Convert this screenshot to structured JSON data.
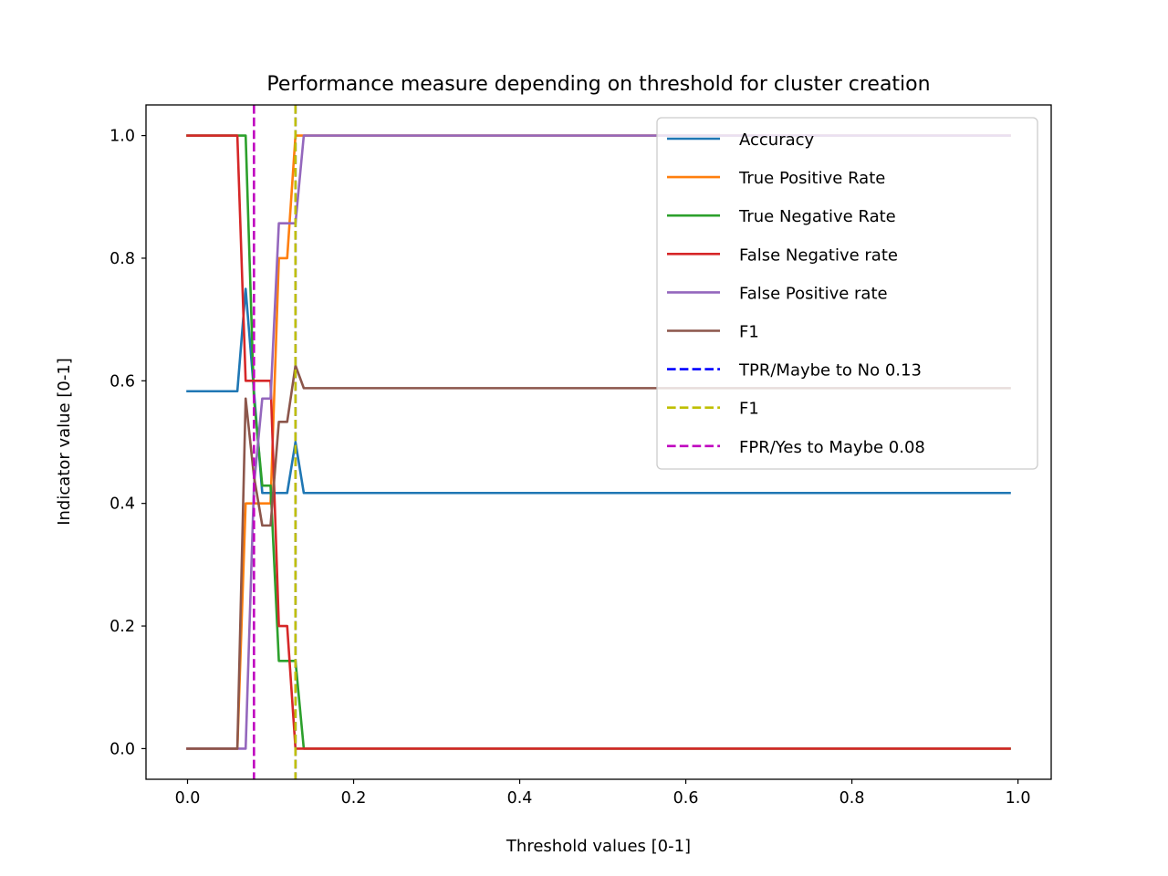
{
  "chart_data": {
    "type": "line",
    "title": "Performance measure depending on threshold for cluster creation",
    "xlabel": "Threshold values [0-1]",
    "ylabel": "Indicator value [0-1]",
    "xlim": [
      -0.05,
      1.04
    ],
    "ylim": [
      -0.05,
      1.05
    ],
    "xticks": [
      0.0,
      0.2,
      0.4,
      0.6,
      0.8,
      1.0
    ],
    "xtick_labels": [
      "0.0",
      "0.2",
      "0.4",
      "0.6",
      "0.8",
      "1.0"
    ],
    "yticks": [
      0.0,
      0.2,
      0.4,
      0.6,
      0.8,
      1.0
    ],
    "ytick_labels": [
      "0.0",
      "0.2",
      "0.4",
      "0.6",
      "0.8",
      "1.0"
    ],
    "grid": false,
    "legend_position": "upper right",
    "series": [
      {
        "name": "Accuracy",
        "color": "#1f77b4",
        "style": "solid",
        "x": [
          0.0,
          0.06,
          0.07,
          0.08,
          0.09,
          0.1,
          0.11,
          0.12,
          0.13,
          0.14,
          0.99
        ],
        "y": [
          0.583,
          0.583,
          0.75,
          0.583,
          0.417,
          0.417,
          0.417,
          0.417,
          0.5,
          0.417,
          0.417
        ]
      },
      {
        "name": "True Positive Rate",
        "color": "#ff7f0e",
        "style": "solid",
        "x": [
          0.0,
          0.06,
          0.07,
          0.08,
          0.09,
          0.1,
          0.11,
          0.12,
          0.13,
          0.14,
          0.99
        ],
        "y": [
          0.0,
          0.0,
          0.4,
          0.4,
          0.4,
          0.4,
          0.8,
          0.8,
          1.0,
          1.0,
          1.0
        ]
      },
      {
        "name": "True Negative Rate",
        "color": "#2ca02c",
        "style": "solid",
        "x": [
          0.0,
          0.06,
          0.07,
          0.08,
          0.09,
          0.1,
          0.11,
          0.12,
          0.13,
          0.14,
          0.99
        ],
        "y": [
          1.0,
          1.0,
          1.0,
          0.571,
          0.429,
          0.429,
          0.143,
          0.143,
          0.143,
          0.0,
          0.0
        ]
      },
      {
        "name": "False Negative rate",
        "color": "#d62728",
        "style": "solid",
        "x": [
          0.0,
          0.06,
          0.07,
          0.08,
          0.09,
          0.1,
          0.11,
          0.12,
          0.13,
          0.14,
          0.99
        ],
        "y": [
          1.0,
          1.0,
          0.6,
          0.6,
          0.6,
          0.6,
          0.2,
          0.2,
          0.0,
          0.0,
          0.0
        ]
      },
      {
        "name": "False Positive rate",
        "color": "#9467bd",
        "style": "solid",
        "x": [
          0.0,
          0.06,
          0.07,
          0.08,
          0.09,
          0.1,
          0.11,
          0.12,
          0.13,
          0.14,
          0.99
        ],
        "y": [
          0.0,
          0.0,
          0.0,
          0.429,
          0.571,
          0.571,
          0.857,
          0.857,
          0.857,
          1.0,
          1.0
        ]
      },
      {
        "name": "F1",
        "color": "#8c564b",
        "style": "solid",
        "x": [
          0.0,
          0.06,
          0.07,
          0.08,
          0.09,
          0.1,
          0.11,
          0.12,
          0.13,
          0.14,
          0.99
        ],
        "y": [
          0.0,
          0.0,
          0.571,
          0.444,
          0.364,
          0.364,
          0.533,
          0.533,
          0.625,
          0.588,
          0.588
        ]
      },
      {
        "name": "TPR/Maybe to No 0.13",
        "color": "#0000ff",
        "style": "dashed",
        "vline": 0.13
      },
      {
        "name": "F1",
        "color": "#bfbf00",
        "style": "dashed",
        "vline": 0.13
      },
      {
        "name": "FPR/Yes to Maybe 0.08",
        "color": "#bf00bf",
        "style": "dashed",
        "vline": 0.08
      }
    ]
  }
}
